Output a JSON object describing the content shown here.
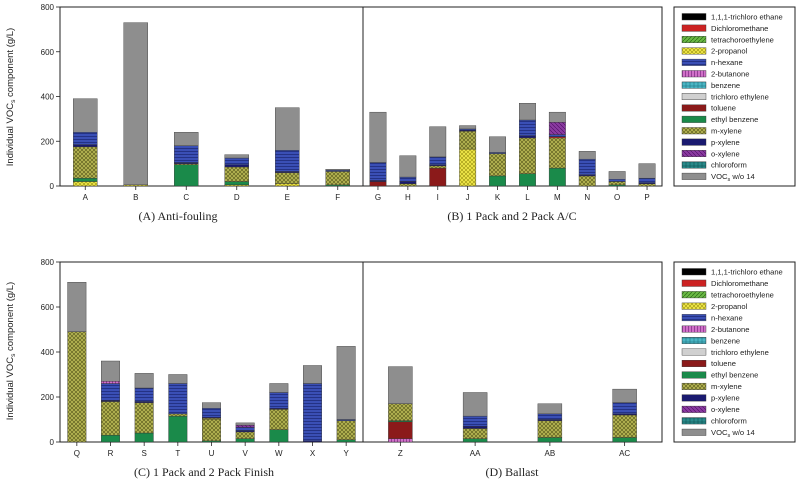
{
  "figure": {
    "ylabel": "Individual VOCs component (g/L)",
    "y_ticks": [
      0,
      200,
      400,
      600,
      800
    ],
    "legend_entries": [
      {
        "key": "tce111",
        "label": "1,1,1-trichloro ethane",
        "color": "#000000"
      },
      {
        "key": "dcm",
        "label": "Dichloromethane",
        "color": "#cc2222"
      },
      {
        "key": "pce",
        "label": "tetrachoroethylene",
        "color": "#55aa33"
      },
      {
        "key": "ipa",
        "label": "2-propanol",
        "color": "#e8e040"
      },
      {
        "key": "hex",
        "label": "n-hexane",
        "color": "#3a4fb5"
      },
      {
        "key": "mek",
        "label": "2-butanone",
        "color": "#c060b8"
      },
      {
        "key": "benz",
        "label": "benzene",
        "color": "#3aa6b4"
      },
      {
        "key": "tce",
        "label": "trichloro ethylene",
        "color": "#d0d0d0"
      },
      {
        "key": "tol",
        "label": "toluene",
        "color": "#8b1a1a"
      },
      {
        "key": "eb",
        "label": "ethyl benzene",
        "color": "#1a8a4a"
      },
      {
        "key": "mx",
        "label": "m-xylene",
        "color": "#9a9a3a"
      },
      {
        "key": "px",
        "label": "p-xylene",
        "color": "#1a1a70"
      },
      {
        "key": "ox",
        "label": "o-xylene",
        "color": "#7a2a90"
      },
      {
        "key": "cf",
        "label": "chloroform",
        "color": "#1a7a7a"
      },
      {
        "key": "rest",
        "label": "VOCs w/o 14",
        "color": "#8e8e8e"
      }
    ]
  },
  "chart_data": [
    {
      "type": "bar",
      "stacked": true,
      "title": "(A) Anti-fouling",
      "ylabel": "Individual VOCs component (g/L)",
      "ylim": [
        0,
        800
      ],
      "categories": [
        "A",
        "B",
        "C",
        "D",
        "E",
        "F"
      ],
      "series": [
        {
          "key": "ipa",
          "values": [
            20,
            5,
            0,
            5,
            10,
            0
          ]
        },
        {
          "key": "eb",
          "values": [
            15,
            0,
            95,
            15,
            0,
            5
          ]
        },
        {
          "key": "mx",
          "values": [
            140,
            0,
            5,
            65,
            50,
            60
          ]
        },
        {
          "key": "px",
          "values": [
            10,
            0,
            5,
            10,
            5,
            0
          ]
        },
        {
          "key": "hex",
          "values": [
            55,
            0,
            75,
            30,
            95,
            5
          ]
        },
        {
          "key": "rest",
          "values": [
            150,
            725,
            60,
            15,
            190,
            5
          ]
        }
      ]
    },
    {
      "type": "bar",
      "stacked": true,
      "title": "(B) 1 Pack and 2 Pack A/C",
      "ylim": [
        0,
        800
      ],
      "categories": [
        "G",
        "H",
        "I",
        "J",
        "K",
        "L",
        "M",
        "N",
        "O",
        "P"
      ],
      "series": [
        {
          "key": "tol",
          "values": [
            20,
            0,
            80,
            0,
            0,
            0,
            0,
            0,
            0,
            0
          ]
        },
        {
          "key": "ipa",
          "values": [
            0,
            0,
            0,
            165,
            0,
            0,
            0,
            0,
            0,
            0
          ]
        },
        {
          "key": "eb",
          "values": [
            0,
            0,
            0,
            0,
            45,
            55,
            80,
            0,
            5,
            0
          ]
        },
        {
          "key": "mx",
          "values": [
            0,
            10,
            10,
            80,
            100,
            160,
            135,
            45,
            15,
            10
          ]
        },
        {
          "key": "dcm",
          "values": [
            0,
            0,
            0,
            0,
            0,
            0,
            5,
            0,
            0,
            0
          ]
        },
        {
          "key": "px",
          "values": [
            5,
            10,
            5,
            5,
            0,
            10,
            0,
            5,
            0,
            5
          ]
        },
        {
          "key": "hex",
          "values": [
            80,
            20,
            35,
            5,
            5,
            70,
            10,
            70,
            10,
            20
          ]
        },
        {
          "key": "ox",
          "values": [
            0,
            0,
            0,
            0,
            0,
            0,
            55,
            0,
            0,
            0
          ]
        },
        {
          "key": "rest",
          "values": [
            225,
            95,
            135,
            15,
            70,
            75,
            45,
            35,
            35,
            65
          ]
        }
      ]
    },
    {
      "type": "bar",
      "stacked": true,
      "title": "(C) 1 Pack and 2 Pack Finish",
      "ylim": [
        0,
        800
      ],
      "categories": [
        "Q",
        "R",
        "S",
        "T",
        "U",
        "V",
        "W",
        "X",
        "Y"
      ],
      "series": [
        {
          "key": "eb",
          "values": [
            0,
            30,
            40,
            115,
            5,
            15,
            55,
            0,
            10
          ]
        },
        {
          "key": "mx",
          "values": [
            490,
            150,
            135,
            10,
            95,
            30,
            90,
            0,
            85
          ]
        },
        {
          "key": "ipa",
          "values": [
            0,
            0,
            0,
            0,
            5,
            0,
            0,
            0,
            0
          ]
        },
        {
          "key": "px",
          "values": [
            0,
            5,
            5,
            0,
            5,
            5,
            5,
            5,
            0
          ]
        },
        {
          "key": "hex",
          "values": [
            0,
            75,
            60,
            135,
            40,
            15,
            70,
            255,
            5
          ]
        },
        {
          "key": "mek",
          "values": [
            0,
            10,
            0,
            0,
            0,
            0,
            0,
            0,
            0
          ]
        },
        {
          "key": "ox",
          "values": [
            0,
            0,
            0,
            0,
            0,
            10,
            0,
            0,
            0
          ]
        },
        {
          "key": "rest",
          "values": [
            220,
            90,
            65,
            40,
            25,
            10,
            40,
            80,
            325
          ]
        }
      ]
    },
    {
      "type": "bar",
      "stacked": true,
      "title": "(D) Ballast",
      "ylim": [
        0,
        800
      ],
      "categories": [
        "Z",
        "AA",
        "AB",
        "AC"
      ],
      "series": [
        {
          "key": "mek",
          "values": [
            15,
            0,
            0,
            0
          ]
        },
        {
          "key": "tol",
          "values": [
            75,
            0,
            0,
            0
          ]
        },
        {
          "key": "eb",
          "values": [
            5,
            15,
            20,
            20
          ]
        },
        {
          "key": "mx",
          "values": [
            75,
            45,
            75,
            100
          ]
        },
        {
          "key": "px",
          "values": [
            0,
            10,
            5,
            5
          ]
        },
        {
          "key": "hex",
          "values": [
            0,
            45,
            25,
            50
          ]
        },
        {
          "key": "rest",
          "values": [
            165,
            105,
            45,
            60
          ]
        }
      ]
    }
  ]
}
